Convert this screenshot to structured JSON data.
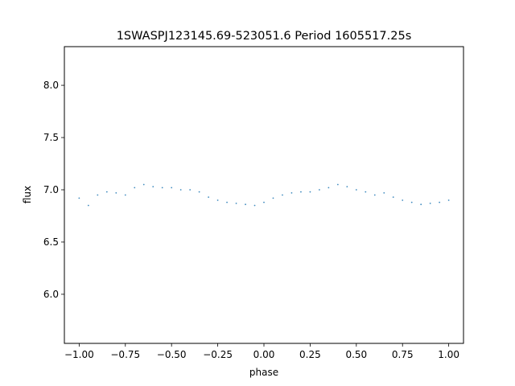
{
  "chart_data": {
    "type": "scatter",
    "title": "1SWASPJ123145.69-523051.6 Period 1605517.25s",
    "xlabel": "phase",
    "ylabel": "flux",
    "xlim": [
      -1.08,
      1.08
    ],
    "ylim": [
      5.53,
      8.37
    ],
    "x_ticks": [
      -1.0,
      -0.75,
      -0.5,
      -0.25,
      0.0,
      0.25,
      0.5,
      0.75,
      1.0
    ],
    "x_tick_labels": [
      "−1.00",
      "−0.75",
      "−0.50",
      "−0.25",
      "0.00",
      "0.25",
      "0.50",
      "0.75",
      "1.00"
    ],
    "y_ticks": [
      6.0,
      6.5,
      7.0,
      7.5,
      8.0
    ],
    "y_tick_labels": [
      "6.0",
      "6.5",
      "7.0",
      "7.5",
      "8.0"
    ],
    "grid": false,
    "marker_color": "#1f77b4",
    "series": [
      {
        "values": [
          [
            -1.0,
            6.92
          ],
          [
            -0.95,
            6.85
          ],
          [
            -0.9,
            6.95
          ],
          [
            -0.85,
            6.98
          ],
          [
            -0.8,
            6.97
          ],
          [
            -0.75,
            6.95
          ],
          [
            -0.7,
            7.02
          ],
          [
            -0.65,
            7.05
          ],
          [
            -0.6,
            7.03
          ],
          [
            -0.55,
            7.02
          ],
          [
            -0.5,
            7.02
          ],
          [
            -0.45,
            7.0
          ],
          [
            -0.4,
            7.0
          ],
          [
            -0.35,
            6.98
          ],
          [
            -0.3,
            6.93
          ],
          [
            -0.25,
            6.9
          ],
          [
            -0.2,
            6.88
          ],
          [
            -0.15,
            6.87
          ],
          [
            -0.1,
            6.86
          ],
          [
            -0.05,
            6.85
          ],
          [
            0.0,
            6.88
          ],
          [
            0.05,
            6.92
          ],
          [
            0.1,
            6.95
          ],
          [
            0.15,
            6.97
          ],
          [
            0.2,
            6.98
          ],
          [
            0.25,
            6.98
          ],
          [
            0.3,
            7.0
          ],
          [
            0.35,
            7.02
          ],
          [
            0.4,
            7.05
          ],
          [
            0.45,
            7.03
          ],
          [
            0.5,
            7.0
          ],
          [
            0.55,
            6.98
          ],
          [
            0.6,
            6.95
          ],
          [
            0.65,
            6.97
          ],
          [
            0.7,
            6.93
          ],
          [
            0.75,
            6.9
          ],
          [
            0.8,
            6.88
          ],
          [
            0.85,
            6.86
          ],
          [
            0.9,
            6.87
          ],
          [
            0.95,
            6.88
          ],
          [
            1.0,
            6.9
          ]
        ]
      }
    ]
  }
}
